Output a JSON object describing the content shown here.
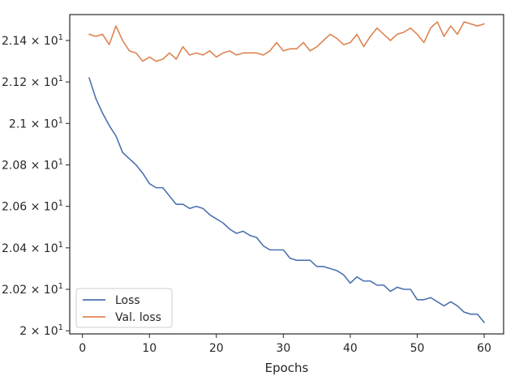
{
  "chart_data": {
    "type": "line",
    "title": "",
    "xlabel": "Epochs",
    "ylabel": "",
    "xlim": [
      -1.9,
      62.9
    ],
    "ylim": [
      19.985,
      21.525
    ],
    "xticks": [
      0,
      10,
      20,
      30,
      40,
      50,
      60
    ],
    "xtick_labels": [
      "0",
      "10",
      "20",
      "30",
      "40",
      "50",
      "60"
    ],
    "yticks": [
      20.0,
      20.2,
      20.4,
      20.6,
      20.8,
      21.0,
      21.2,
      21.4
    ],
    "ytick_labels": [
      {
        "mantissa": "2",
        "exp": "1"
      },
      {
        "mantissa": "2.02",
        "exp": "1"
      },
      {
        "mantissa": "2.04",
        "exp": "1"
      },
      {
        "mantissa": "2.06",
        "exp": "1"
      },
      {
        "mantissa": "2.08",
        "exp": "1"
      },
      {
        "mantissa": "2.1",
        "exp": "1"
      },
      {
        "mantissa": "2.12",
        "exp": "1"
      },
      {
        "mantissa": "2.14",
        "exp": "1"
      }
    ],
    "grid": false,
    "legend_position": "lower-left",
    "series": [
      {
        "name": "Loss",
        "color": "#4c72b0",
        "x": [
          1,
          2,
          3,
          4,
          5,
          6,
          7,
          8,
          9,
          10,
          11,
          12,
          13,
          14,
          15,
          16,
          17,
          18,
          19,
          20,
          21,
          22,
          23,
          24,
          25,
          26,
          27,
          28,
          29,
          30,
          31,
          32,
          33,
          34,
          35,
          36,
          37,
          38,
          39,
          40,
          41,
          42,
          43,
          44,
          45,
          46,
          47,
          48,
          49,
          50,
          51,
          52,
          53,
          54,
          55,
          56,
          57,
          58,
          59,
          60
        ],
        "y": [
          21.22,
          21.12,
          21.05,
          20.99,
          20.94,
          20.86,
          20.83,
          20.8,
          20.76,
          20.71,
          20.69,
          20.69,
          20.65,
          20.61,
          20.61,
          20.59,
          20.6,
          20.59,
          20.56,
          20.54,
          20.52,
          20.49,
          20.47,
          20.48,
          20.46,
          20.45,
          20.41,
          20.39,
          20.39,
          20.39,
          20.35,
          20.34,
          20.34,
          20.34,
          20.31,
          20.31,
          20.3,
          20.29,
          20.27,
          20.23,
          20.26,
          20.24,
          20.24,
          20.22,
          20.22,
          20.19,
          20.21,
          20.2,
          20.2,
          20.15,
          20.15,
          20.16,
          20.14,
          20.12,
          20.14,
          20.12,
          20.09,
          20.08,
          20.08,
          20.04
        ]
      },
      {
        "name": "Val. loss",
        "color": "#dd8452",
        "x": [
          1,
          2,
          3,
          4,
          5,
          6,
          7,
          8,
          9,
          10,
          11,
          12,
          13,
          14,
          15,
          16,
          17,
          18,
          19,
          20,
          21,
          22,
          23,
          24,
          25,
          26,
          27,
          28,
          29,
          30,
          31,
          32,
          33,
          34,
          35,
          36,
          37,
          38,
          39,
          40,
          41,
          42,
          43,
          44,
          45,
          46,
          47,
          48,
          49,
          50,
          51,
          52,
          53,
          54,
          55,
          56,
          57,
          58,
          59,
          60
        ],
        "y": [
          21.43,
          21.42,
          21.43,
          21.38,
          21.47,
          21.4,
          21.35,
          21.34,
          21.3,
          21.32,
          21.3,
          21.31,
          21.34,
          21.31,
          21.37,
          21.33,
          21.34,
          21.33,
          21.35,
          21.32,
          21.34,
          21.35,
          21.33,
          21.34,
          21.34,
          21.34,
          21.33,
          21.35,
          21.39,
          21.35,
          21.36,
          21.36,
          21.39,
          21.35,
          21.37,
          21.4,
          21.43,
          21.41,
          21.38,
          21.39,
          21.43,
          21.37,
          21.42,
          21.46,
          21.43,
          21.4,
          21.43,
          21.44,
          21.46,
          21.43,
          21.39,
          21.46,
          21.49,
          21.42,
          21.47,
          21.43,
          21.49,
          21.48,
          21.47,
          21.48
        ]
      }
    ]
  }
}
